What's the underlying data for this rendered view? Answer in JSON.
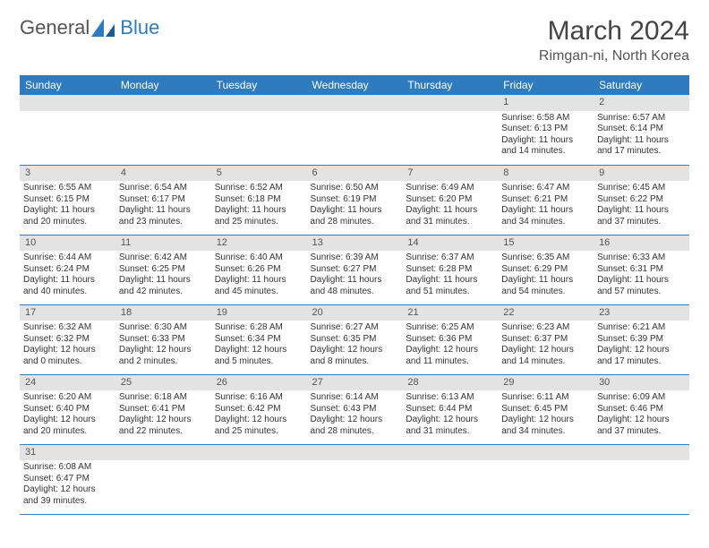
{
  "logo": {
    "text1": "General",
    "text2": "Blue"
  },
  "title": {
    "month": "March 2024",
    "location": "Rimgan-ni, North Korea"
  },
  "weekdays": [
    "Sunday",
    "Monday",
    "Tuesday",
    "Wednesday",
    "Thursday",
    "Friday",
    "Saturday"
  ],
  "colors": {
    "header_bg": "#2f7bbf",
    "header_fg": "#ffffff",
    "daynum_bg": "#e3e3e3",
    "row_divider": "#2f7bbf",
    "body_bg": "#ffffff",
    "text": "#333333"
  },
  "weeks": [
    [
      null,
      null,
      null,
      null,
      null,
      {
        "n": "1",
        "sunrise": "6:58 AM",
        "sunset": "6:13 PM",
        "daylight": "11 hours and 14 minutes."
      },
      {
        "n": "2",
        "sunrise": "6:57 AM",
        "sunset": "6:14 PM",
        "daylight": "11 hours and 17 minutes."
      }
    ],
    [
      {
        "n": "3",
        "sunrise": "6:55 AM",
        "sunset": "6:15 PM",
        "daylight": "11 hours and 20 minutes."
      },
      {
        "n": "4",
        "sunrise": "6:54 AM",
        "sunset": "6:17 PM",
        "daylight": "11 hours and 23 minutes."
      },
      {
        "n": "5",
        "sunrise": "6:52 AM",
        "sunset": "6:18 PM",
        "daylight": "11 hours and 25 minutes."
      },
      {
        "n": "6",
        "sunrise": "6:50 AM",
        "sunset": "6:19 PM",
        "daylight": "11 hours and 28 minutes."
      },
      {
        "n": "7",
        "sunrise": "6:49 AM",
        "sunset": "6:20 PM",
        "daylight": "11 hours and 31 minutes."
      },
      {
        "n": "8",
        "sunrise": "6:47 AM",
        "sunset": "6:21 PM",
        "daylight": "11 hours and 34 minutes."
      },
      {
        "n": "9",
        "sunrise": "6:45 AM",
        "sunset": "6:22 PM",
        "daylight": "11 hours and 37 minutes."
      }
    ],
    [
      {
        "n": "10",
        "sunrise": "6:44 AM",
        "sunset": "6:24 PM",
        "daylight": "11 hours and 40 minutes."
      },
      {
        "n": "11",
        "sunrise": "6:42 AM",
        "sunset": "6:25 PM",
        "daylight": "11 hours and 42 minutes."
      },
      {
        "n": "12",
        "sunrise": "6:40 AM",
        "sunset": "6:26 PM",
        "daylight": "11 hours and 45 minutes."
      },
      {
        "n": "13",
        "sunrise": "6:39 AM",
        "sunset": "6:27 PM",
        "daylight": "11 hours and 48 minutes."
      },
      {
        "n": "14",
        "sunrise": "6:37 AM",
        "sunset": "6:28 PM",
        "daylight": "11 hours and 51 minutes."
      },
      {
        "n": "15",
        "sunrise": "6:35 AM",
        "sunset": "6:29 PM",
        "daylight": "11 hours and 54 minutes."
      },
      {
        "n": "16",
        "sunrise": "6:33 AM",
        "sunset": "6:31 PM",
        "daylight": "11 hours and 57 minutes."
      }
    ],
    [
      {
        "n": "17",
        "sunrise": "6:32 AM",
        "sunset": "6:32 PM",
        "daylight": "12 hours and 0 minutes."
      },
      {
        "n": "18",
        "sunrise": "6:30 AM",
        "sunset": "6:33 PM",
        "daylight": "12 hours and 2 minutes."
      },
      {
        "n": "19",
        "sunrise": "6:28 AM",
        "sunset": "6:34 PM",
        "daylight": "12 hours and 5 minutes."
      },
      {
        "n": "20",
        "sunrise": "6:27 AM",
        "sunset": "6:35 PM",
        "daylight": "12 hours and 8 minutes."
      },
      {
        "n": "21",
        "sunrise": "6:25 AM",
        "sunset": "6:36 PM",
        "daylight": "12 hours and 11 minutes."
      },
      {
        "n": "22",
        "sunrise": "6:23 AM",
        "sunset": "6:37 PM",
        "daylight": "12 hours and 14 minutes."
      },
      {
        "n": "23",
        "sunrise": "6:21 AM",
        "sunset": "6:39 PM",
        "daylight": "12 hours and 17 minutes."
      }
    ],
    [
      {
        "n": "24",
        "sunrise": "6:20 AM",
        "sunset": "6:40 PM",
        "daylight": "12 hours and 20 minutes."
      },
      {
        "n": "25",
        "sunrise": "6:18 AM",
        "sunset": "6:41 PM",
        "daylight": "12 hours and 22 minutes."
      },
      {
        "n": "26",
        "sunrise": "6:16 AM",
        "sunset": "6:42 PM",
        "daylight": "12 hours and 25 minutes."
      },
      {
        "n": "27",
        "sunrise": "6:14 AM",
        "sunset": "6:43 PM",
        "daylight": "12 hours and 28 minutes."
      },
      {
        "n": "28",
        "sunrise": "6:13 AM",
        "sunset": "6:44 PM",
        "daylight": "12 hours and 31 minutes."
      },
      {
        "n": "29",
        "sunrise": "6:11 AM",
        "sunset": "6:45 PM",
        "daylight": "12 hours and 34 minutes."
      },
      {
        "n": "30",
        "sunrise": "6:09 AM",
        "sunset": "6:46 PM",
        "daylight": "12 hours and 37 minutes."
      }
    ],
    [
      {
        "n": "31",
        "sunrise": "6:08 AM",
        "sunset": "6:47 PM",
        "daylight": "12 hours and 39 minutes."
      },
      null,
      null,
      null,
      null,
      null,
      null
    ]
  ],
  "labels": {
    "sunrise": "Sunrise:",
    "sunset": "Sunset:",
    "daylight": "Daylight:"
  }
}
